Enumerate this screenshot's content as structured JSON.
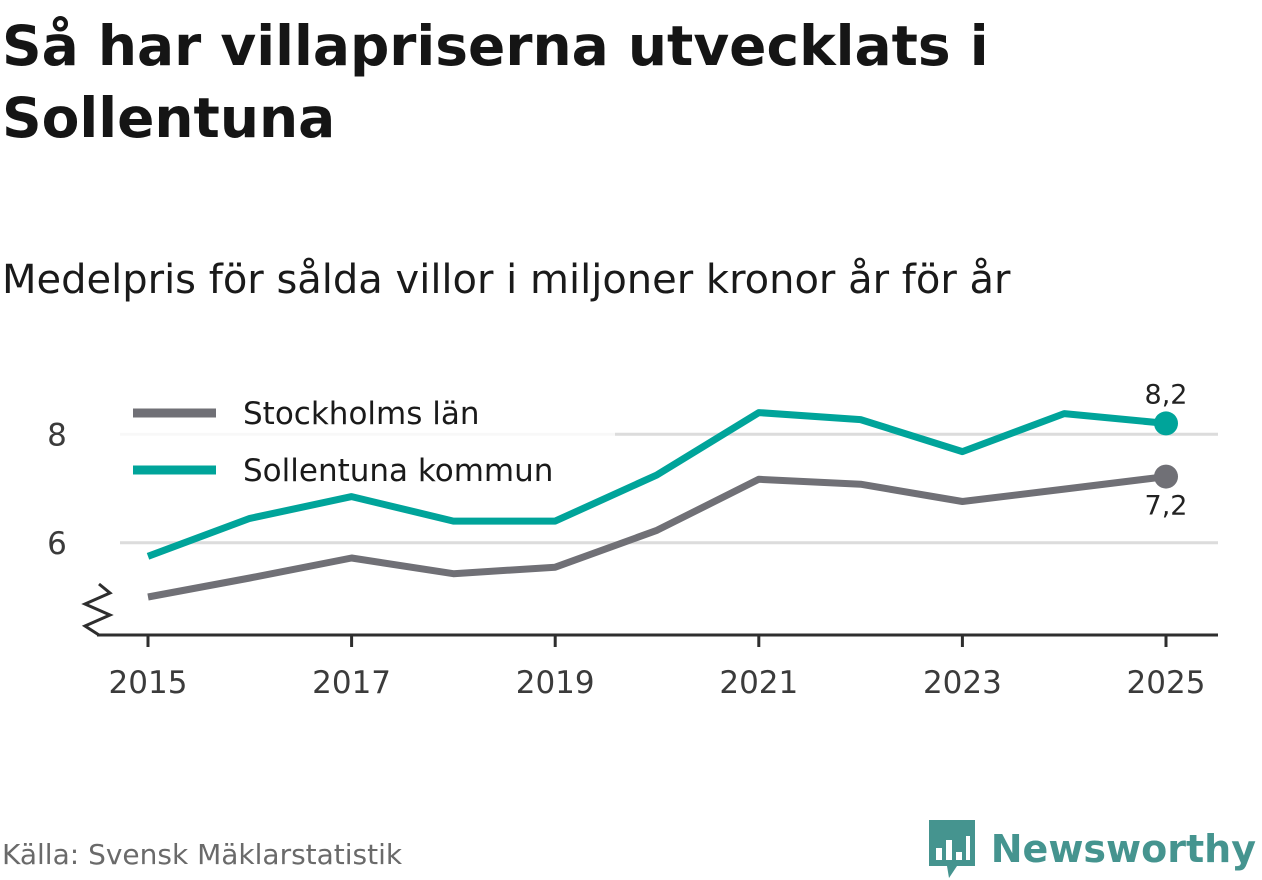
{
  "title": "Så har villapriserna utvecklats i Sollentuna",
  "subtitle": "Medelpris för sålda villor i miljoner kronor år för år",
  "source": "Källa: Svensk Mäklarstatistik",
  "brand": {
    "name": "Newsworthy",
    "icon": "bar-chart-speech-bubble-icon",
    "color": "#45948f"
  },
  "chart_data": {
    "type": "line",
    "x": [
      2015,
      2016,
      2017,
      2018,
      2019,
      2020,
      2021,
      2022,
      2023,
      2024,
      2025
    ],
    "x_ticks": [
      "2015",
      "2017",
      "2019",
      "2021",
      "2023",
      "2025"
    ],
    "y_ticks": [
      "6",
      "8"
    ],
    "ylim": [
      4.3,
      9.0
    ],
    "axis_break": true,
    "grid": "horizontal",
    "legend_position": "top-left",
    "series": [
      {
        "name": "Stockholms län",
        "color": "#707076",
        "values": [
          5.0,
          5.35,
          5.72,
          5.43,
          5.55,
          6.23,
          7.17,
          7.08,
          6.76,
          6.99,
          7.22
        ],
        "end_label": "7,2"
      },
      {
        "name": "Sollentuna kommun",
        "color": "#00a49a",
        "values": [
          5.75,
          6.45,
          6.85,
          6.4,
          6.4,
          7.25,
          8.4,
          8.27,
          7.68,
          8.38,
          8.2
        ],
        "end_label": "8,2"
      }
    ]
  }
}
